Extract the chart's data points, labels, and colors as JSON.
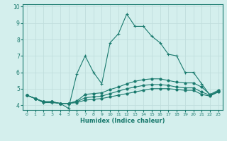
{
  "xlabel": "Humidex (Indice chaleur)",
  "bg_color": "#d4efed",
  "line_color": "#1a7a6e",
  "grid_color": "#c0dedd",
  "xlim": [
    -0.5,
    23.5
  ],
  "ylim": [
    3.7,
    10.15
  ],
  "xticks": [
    0,
    1,
    2,
    3,
    4,
    5,
    6,
    7,
    8,
    9,
    10,
    11,
    12,
    13,
    14,
    15,
    16,
    17,
    18,
    19,
    20,
    21,
    22,
    23
  ],
  "yticks": [
    4,
    5,
    6,
    7,
    8,
    9,
    10
  ],
  "line1": [
    4.6,
    4.4,
    4.2,
    4.2,
    4.1,
    4.1,
    4.15,
    4.3,
    4.35,
    4.4,
    4.5,
    4.6,
    4.7,
    4.8,
    4.9,
    5.0,
    5.0,
    5.0,
    4.95,
    4.9,
    4.9,
    4.65,
    4.55,
    4.8
  ],
  "line2": [
    4.6,
    4.4,
    4.2,
    4.2,
    4.1,
    4.1,
    4.2,
    4.45,
    4.5,
    4.55,
    4.7,
    4.85,
    5.0,
    5.1,
    5.2,
    5.25,
    5.25,
    5.2,
    5.1,
    5.05,
    5.05,
    4.8,
    4.6,
    4.85
  ],
  "line3": [
    4.6,
    4.4,
    4.2,
    4.2,
    4.1,
    4.1,
    4.25,
    4.65,
    4.7,
    4.75,
    4.95,
    5.1,
    5.3,
    5.45,
    5.55,
    5.6,
    5.6,
    5.5,
    5.4,
    5.35,
    5.35,
    5.1,
    4.65,
    4.9
  ],
  "line4": [
    4.6,
    4.4,
    4.15,
    4.15,
    4.1,
    3.8,
    5.9,
    7.0,
    6.0,
    5.3,
    7.8,
    8.35,
    9.55,
    8.8,
    8.8,
    8.2,
    7.8,
    7.1,
    7.0,
    6.0,
    6.0,
    5.3,
    4.6,
    4.8
  ]
}
